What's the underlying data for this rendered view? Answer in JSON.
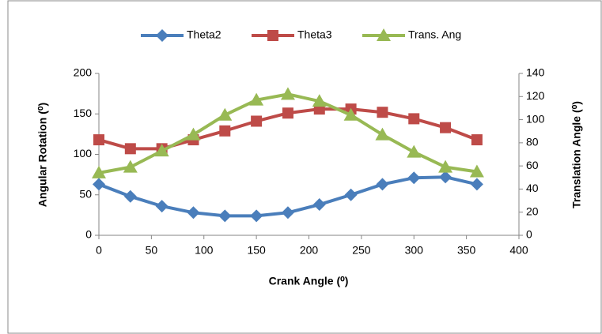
{
  "chart_data": {
    "type": "line",
    "xlabel": "Crank Angle (⁰)",
    "ylabel": "Angular Rotation (⁰)",
    "y2label": "Translation Angle (⁰)",
    "x": [
      0,
      30,
      60,
      90,
      120,
      150,
      180,
      210,
      240,
      270,
      300,
      330,
      360
    ],
    "series": [
      {
        "name": "Theta2",
        "color": "#4a7ebb",
        "marker": "diamond",
        "axis": "y",
        "values": [
          63,
          48,
          36,
          28,
          24,
          24,
          28,
          38,
          50,
          63,
          71,
          72,
          63
        ]
      },
      {
        "name": "Theta3",
        "color": "#be4b48",
        "marker": "square",
        "axis": "y",
        "values": [
          118,
          107,
          107,
          118,
          129,
          141,
          151,
          156,
          156,
          152,
          144,
          133,
          118
        ]
      },
      {
        "name": "Trans. Ang",
        "color": "#98b954",
        "marker": "triangle",
        "axis": "y2",
        "values": [
          54,
          59,
          73,
          87,
          104,
          117,
          122,
          116,
          104,
          87,
          72,
          59,
          55
        ]
      }
    ],
    "xlim": [
      0,
      400
    ],
    "xticks": [
      0,
      50,
      100,
      150,
      200,
      250,
      300,
      350,
      400
    ],
    "ylim": [
      0,
      200
    ],
    "yticks": [
      0,
      50,
      100,
      150,
      200
    ],
    "y2lim": [
      0,
      140
    ],
    "y2ticks": [
      0,
      20,
      40,
      60,
      80,
      100,
      120,
      140
    ],
    "legend": "top"
  }
}
